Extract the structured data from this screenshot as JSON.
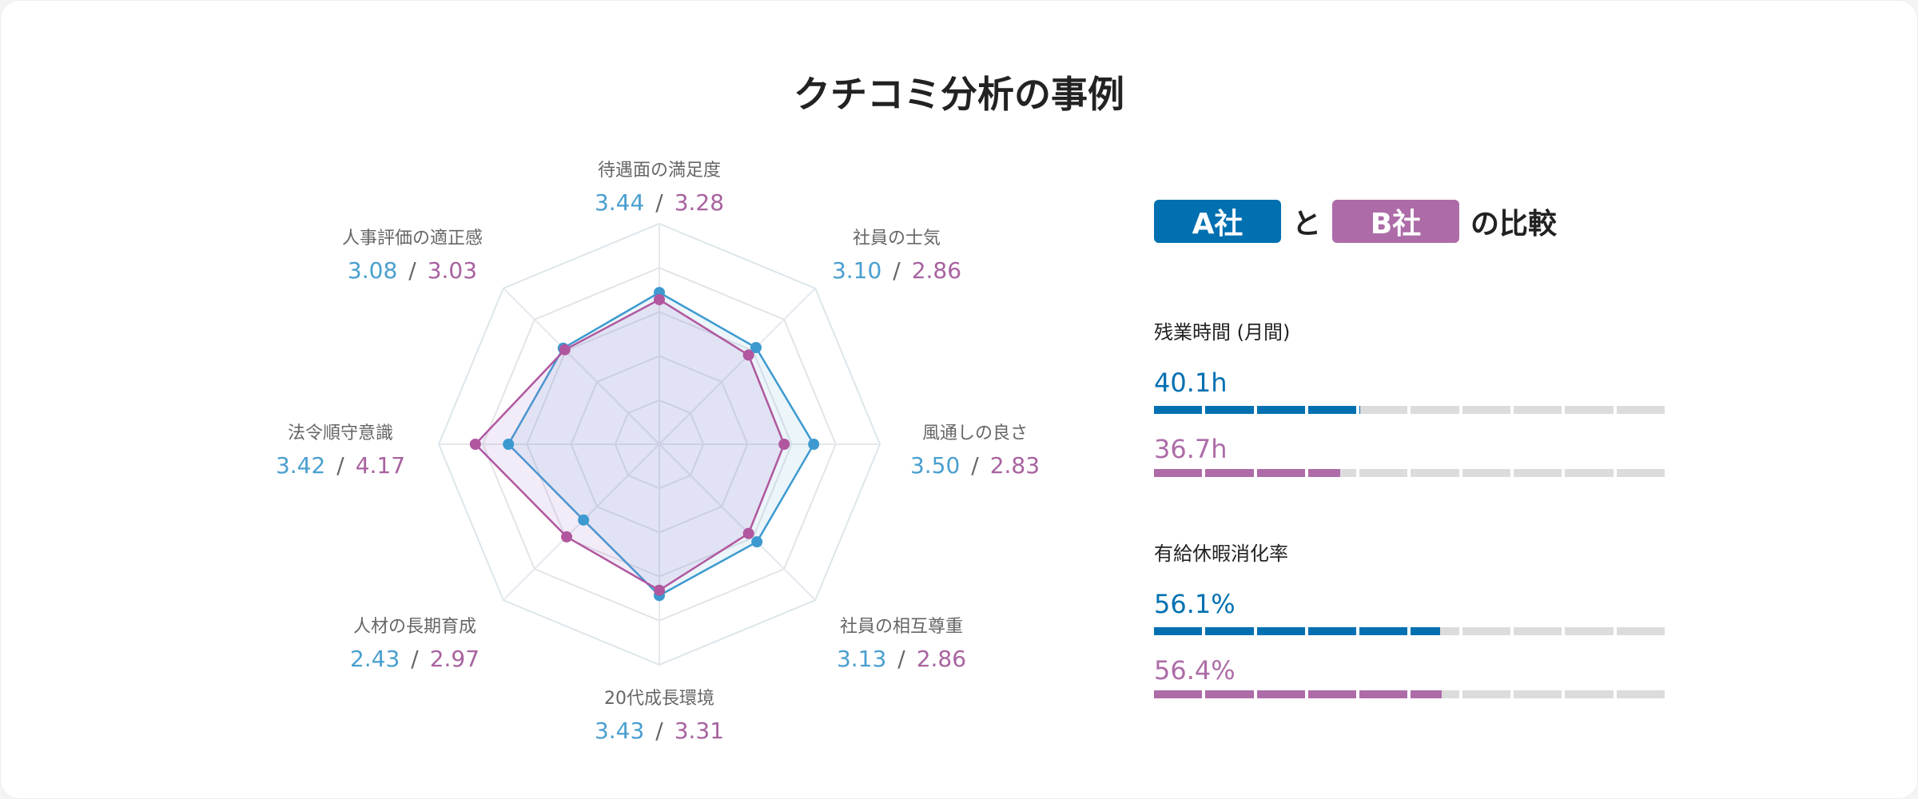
{
  "title": "クチコミ分析の事例",
  "comparison": {
    "company_a": "A社",
    "and": "と",
    "company_b": "B社",
    "suffix": "の比較"
  },
  "colors": {
    "company_a": "#0070b1",
    "company_b": "#ad6ca8",
    "radar_a": "#3c9ad0",
    "radar_b": "#b0579f",
    "grid": "#dde6ea",
    "bar_empty": "#dcdcdc"
  },
  "chart_data": {
    "type": "radar",
    "range": [
      0,
      5
    ],
    "grid_levels": 5,
    "axes": [
      "待遇面の満足度",
      "社員の士気",
      "風通しの良さ",
      "社員の相互尊重",
      "20代成長環境",
      "人材の長期育成",
      "法令順守意識",
      "人事評価の適正感"
    ],
    "series": [
      {
        "name": "A社",
        "values": [
          3.44,
          3.1,
          3.5,
          3.13,
          3.43,
          2.43,
          3.42,
          3.08
        ],
        "labels": [
          "3.44",
          "3.10",
          "3.50",
          "3.13",
          "3.43",
          "2.43",
          "3.42",
          "3.08"
        ]
      },
      {
        "name": "B社",
        "values": [
          3.28,
          2.86,
          2.83,
          2.86,
          3.31,
          2.97,
          4.17,
          3.03
        ],
        "labels": [
          "3.28",
          "2.86",
          "2.83",
          "2.86",
          "3.31",
          "2.97",
          "4.17",
          "3.03"
        ]
      }
    ],
    "separator": "/"
  },
  "metrics": [
    {
      "label": "残業時間 (月間)",
      "a": {
        "text": "40.1h",
        "value": 40.1
      },
      "b": {
        "text": "36.7h",
        "value": 36.7
      },
      "max": 100
    },
    {
      "label": "有給休暇消化率",
      "a": {
        "text": "56.1%",
        "value": 56.1
      },
      "b": {
        "text": "56.4%",
        "value": 56.4
      },
      "max": 100
    }
  ]
}
